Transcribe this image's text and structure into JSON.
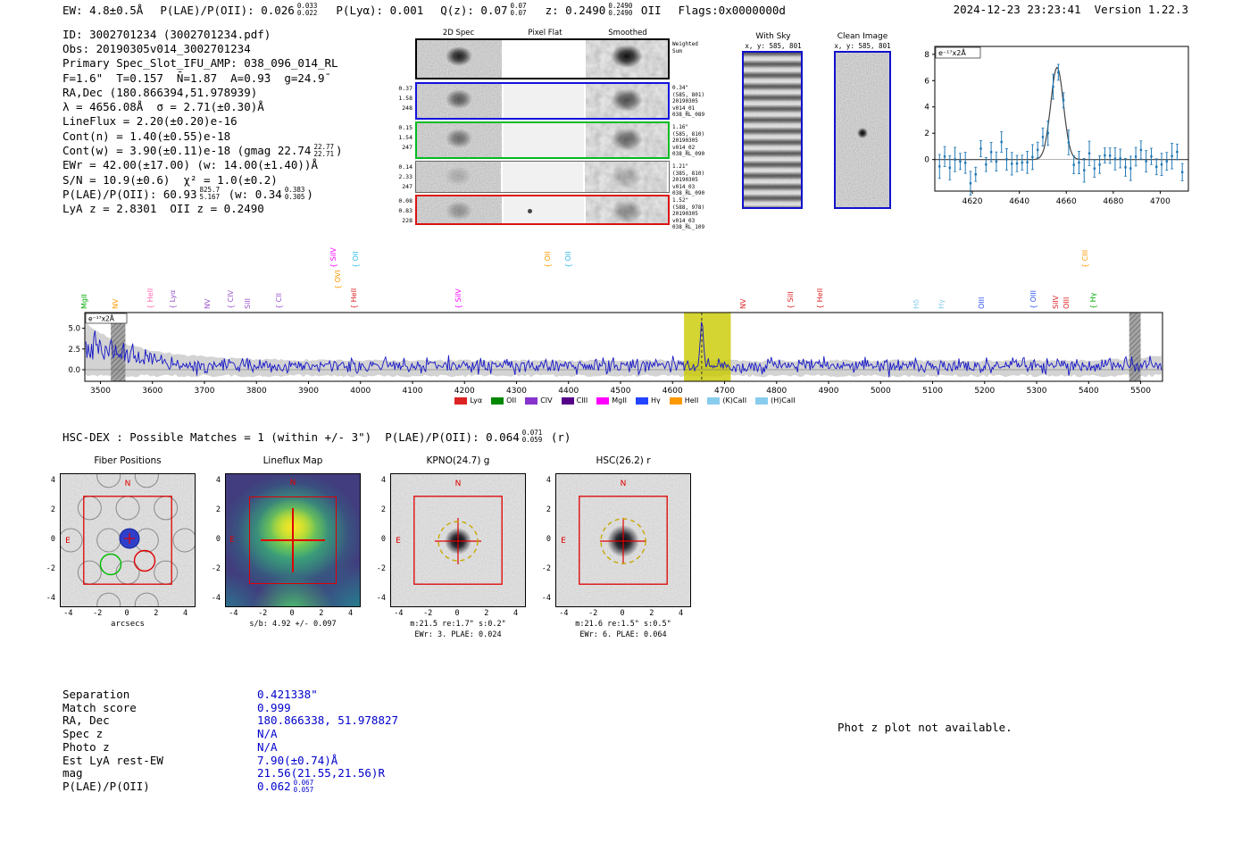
{
  "header": {
    "datetime": "2024-12-23 23:23:41",
    "version": "Version 1.22.3"
  },
  "header_groups": [
    {
      "segs": [
        {
          "t": "EW: 4.8±0.5Å"
        }
      ]
    },
    {
      "segs": [
        {
          "t": "P(LAE)/P(OII): 0.026"
        },
        {
          "sup": "0.033",
          "sub": "0.022"
        }
      ]
    },
    {
      "segs": [
        {
          "t": "P(Lyα): 0.001"
        }
      ]
    },
    {
      "segs": [
        {
          "t": "Q(z): 0.07"
        },
        {
          "sup": "0.07",
          "sub": "0.07"
        }
      ]
    },
    {
      "segs": [
        {
          "t": "z: 0.2490"
        },
        {
          "sup": "0.2490",
          "sub": "0.2490"
        },
        {
          "t": " OII"
        }
      ]
    },
    {
      "segs": [
        {
          "t": "Flags:0x0000000d"
        }
      ]
    }
  ],
  "info_lines": [
    {
      "segs": [
        {
          "t": "ID: 3002701234 (3002701234.pdf)"
        }
      ]
    },
    {
      "segs": [
        {
          "t": "Obs: 20190305v014_3002701234"
        }
      ]
    },
    {
      "segs": [
        {
          "t": "Primary Spec_Slot_IFU_AMP: 038_096_014_RL"
        }
      ]
    },
    {
      "segs": [
        {
          "t": "F=1.6\"  T=0.157  N̄=1.87  A=0.9̄3  g=24.9̄"
        }
      ]
    },
    {
      "segs": [
        {
          "t": "RA,Dec (180.866394,51.978939)"
        }
      ]
    },
    {
      "segs": [
        {
          "t": "λ = 4656.08Å  σ = 2.71(±0.30)Å"
        }
      ]
    },
    {
      "segs": [
        {
          "t": "LineFlux = 2.20(±0.20)e-16"
        }
      ]
    },
    {
      "segs": [
        {
          "t": "Cont(n) = 1.40(±0.55)e-18"
        }
      ]
    },
    {
      "segs": [
        {
          "t": "Cont(w) = 3.90(±0.11)e-18 (gmag 22.74"
        },
        {
          "sup": "22.77",
          "sub": "22.71"
        },
        {
          "t": ")"
        }
      ]
    },
    {
      "segs": [
        {
          "t": "EWr = 42.00(±17.00) (w: 14.00(±1.40))Å"
        }
      ]
    },
    {
      "segs": [
        {
          "t": "S/N = 10.9(±0.6)  χ² = 1.0(±0.2)"
        }
      ]
    },
    {
      "segs": [
        {
          "t": "P(LAE)/P(OII): 60.93"
        },
        {
          "sup": "825.7",
          "sub": "5.167"
        },
        {
          "t": " (w: 0.34"
        },
        {
          "sup": "0.383",
          "sub": "0.305"
        },
        {
          "t": ")"
        }
      ]
    },
    {
      "segs": [
        {
          "t": "LyA z = 2.8301  OII z = 0.2490"
        }
      ]
    }
  ],
  "spec2d": {
    "col_headers": [
      "2D Spec",
      "Pixel Flat",
      "Smoothed"
    ],
    "weighted_sum_l1": "Weighted",
    "weighted_sum_l2": "Sum",
    "rows": [
      {
        "border": "#000000",
        "left": [],
        "right": []
      },
      {
        "border": "#1111dd",
        "left": [
          "0.37",
          "1.58",
          "248"
        ],
        "right": [
          "0.34\"",
          "(585, 801)",
          "20190305",
          "v014_01",
          "038_RL_089"
        ]
      },
      {
        "border": "#00bb22",
        "left": [
          "0.15",
          "1.54",
          "247"
        ],
        "right": [
          "1.16\"",
          "(585, 810)",
          "20190305",
          "v014_02",
          "038_RL_090"
        ]
      },
      {
        "border": "#666666",
        "left": [
          "0.14",
          "2.33",
          "247"
        ],
        "right": [
          "1.21\"",
          "(385, 810)",
          "20190305",
          "v014_03",
          "038_RL_090"
        ]
      },
      {
        "border": "#dd1111",
        "left": [
          "0.08",
          "0.83",
          "228"
        ],
        "right": [
          "1.52\"",
          "(588, 978)",
          "20190305",
          "v014_03",
          "038_RL_109"
        ]
      }
    ]
  },
  "cutout2d": {
    "with_sky_title": "With Sky",
    "with_sky_xy": "x, y: 585, 801",
    "clean_title": "Clean Image",
    "clean_xy": "x, y: 585, 801"
  },
  "hsc_line": {
    "segs": [
      {
        "t": "HSC-DEX : Possible Matches = 1 (within +/- 3\")  P(LAE)/P(OII): 0.064"
      },
      {
        "sup": "0.071",
        "sub": "0.059"
      },
      {
        "t": " (r)"
      }
    ]
  },
  "cutouts": {
    "axis_ticks": [
      "-4",
      "-2",
      "0",
      "2",
      "4"
    ],
    "xlabel": "arcsecs",
    "compass_n": "N",
    "compass_e": "E",
    "panels": [
      {
        "title": "Fiber Positions",
        "type": "fiber",
        "captions": []
      },
      {
        "title": "Lineflux Map",
        "type": "lineflux",
        "captions": [
          "s/b: 4.92 +/- 0.097"
        ]
      },
      {
        "title": "KPNO(24.7) g",
        "type": "image",
        "captions": [
          "m:21.5 re:1.7\" s:0.2\"",
          "EWr: 3. PLAE: 0.024"
        ]
      },
      {
        "title": "HSC(26.2) r",
        "type": "image",
        "captions": [
          "m:21.6 re:1.5\" s:0.5\"",
          "EWr: 6. PLAE: 0.064"
        ]
      }
    ]
  },
  "match_table": {
    "value_color": "#0000cc",
    "rows": [
      {
        "label": "Separation",
        "value": "0.421338\""
      },
      {
        "label": "Match score",
        "value": "0.999"
      },
      {
        "label": "RA, Dec",
        "value": "180.866338, 51.978827"
      },
      {
        "label": "Spec z",
        "value": "N/A"
      },
      {
        "label": "Photo z",
        "value": "N/A"
      },
      {
        "label": "Est LyA rest-EW",
        "value": "7.90(±0.74)Å"
      },
      {
        "label": "mag",
        "value": "21.56(21.55,21.56)R"
      },
      {
        "label": "P(LAE)/P(OII)",
        "value": "0.062",
        "sup": "0.067",
        "sub": "0.057"
      }
    ]
  },
  "photz_note": "Phot z plot not available.",
  "chart_data": [
    {
      "id": "emission-line-zoom",
      "type": "line",
      "units_label": "e⁻¹⁷x2Å",
      "xlim": [
        4604,
        4712
      ],
      "ylim": [
        -2.4,
        8.6
      ],
      "x_ticks": [
        4620,
        4640,
        4660,
        4680,
        4700
      ],
      "y_ticks": [
        0,
        2,
        4,
        6,
        8
      ],
      "gaussian_fit": {
        "center": 4656.08,
        "sigma": 2.71,
        "amplitude": 7.0,
        "baseline": 0.0
      },
      "point_step": 2.2,
      "noise_sigma": 0.55,
      "errorbar": 0.75,
      "point_color": "#1f77b4",
      "fit_color": "#444444",
      "seed": 42
    },
    {
      "id": "full-spectrum",
      "type": "line",
      "units_label": "e⁻¹⁷x2Å",
      "xlim": [
        3470,
        5542
      ],
      "ylim": [
        -1.4,
        6.9
      ],
      "x_ticks": [
        3500,
        3600,
        3700,
        3800,
        3900,
        4000,
        4100,
        4200,
        4300,
        4400,
        4500,
        4600,
        4700,
        4800,
        4900,
        5000,
        5100,
        5200,
        5300,
        5400,
        5500
      ],
      "y_ticks": [
        0.0,
        2.5,
        5.0
      ],
      "line_color": "#1616c8",
      "emission_peak": {
        "center": 4656.08,
        "sigma": 2.71,
        "amplitude": 5.0
      },
      "highlight_band": {
        "x0": 4622,
        "x1": 4712,
        "color": "#c9c900",
        "opacity": 0.8
      },
      "marker_line": {
        "x": 4656.08,
        "color": "#333333"
      },
      "edge_bands": [
        {
          "x0": 3520,
          "x1": 3548
        },
        {
          "x0": 5478,
          "x1": 5500
        }
      ],
      "gray_band_color": "#c4c4c4",
      "seed": 7,
      "legend": [
        {
          "label": "Lyα",
          "color": "#dd2222"
        },
        {
          "label": "OII",
          "color": "#008800"
        },
        {
          "label": "CIV",
          "color": "#8833cc"
        },
        {
          "label": "CIII",
          "color": "#550088"
        },
        {
          "label": "MgII",
          "color": "#ff00ff"
        },
        {
          "label": "Hγ",
          "color": "#2244ff"
        },
        {
          "label": "HeII",
          "color": "#ff9900"
        },
        {
          "label": "(K)CaII",
          "color": "#88ccee"
        },
        {
          "label": "(H)CaII",
          "color": "#88ccee"
        }
      ],
      "line_labels": [
        {
          "label": "MgII",
          "wl": 3480,
          "color": "#00aa00",
          "tier": 0,
          "brace": false
        },
        {
          "label": "NV",
          "wl": 3540,
          "color": "#ff9900",
          "tier": 0,
          "brace": false
        },
        {
          "label": "HeII",
          "wl": 3607,
          "color": "#ff69b4",
          "tier": 0,
          "brace": true
        },
        {
          "label": "Lyα",
          "wl": 3650,
          "color": "#9955cc",
          "tier": 0,
          "brace": true
        },
        {
          "label": "NV",
          "wl": 3718,
          "color": "#9955cc",
          "tier": 0,
          "brace": false
        },
        {
          "label": "CIV",
          "wl": 3762,
          "color": "#9955cc",
          "tier": 0,
          "brace": true
        },
        {
          "label": "SiII",
          "wl": 3795,
          "color": "#9955cc",
          "tier": 0,
          "brace": false
        },
        {
          "label": "CII",
          "wl": 3855,
          "color": "#9955cc",
          "tier": 0,
          "brace": true
        },
        {
          "label": "SiIV",
          "wl": 3960,
          "color": "#ff00ff",
          "tier": 2,
          "brace": true
        },
        {
          "label": "OVI",
          "wl": 3968,
          "color": "#ff9900",
          "tier": 1,
          "brace": true
        },
        {
          "label": "HeII",
          "wl": 3998,
          "color": "#dd2222",
          "tier": 0,
          "brace": true
        },
        {
          "label": "OII",
          "wl": 4002,
          "color": "#33bbee",
          "tier": 2,
          "brace": true
        },
        {
          "label": "SiIV",
          "wl": 4200,
          "color": "#ff00ff",
          "tier": 0,
          "brace": true
        },
        {
          "label": "OII",
          "wl": 4372,
          "color": "#ff9900",
          "tier": 2,
          "brace": true
        },
        {
          "label": "OII",
          "wl": 4410,
          "color": "#33bbee",
          "tier": 2,
          "brace": true
        },
        {
          "label": "NV",
          "wl": 4748,
          "color": "#dd2222",
          "tier": 0,
          "brace": false
        },
        {
          "label": "SiII",
          "wl": 4838,
          "color": "#dd2222",
          "tier": 0,
          "brace": true
        },
        {
          "label": "HeII",
          "wl": 4895,
          "color": "#dd2222",
          "tier": 0,
          "brace": true
        },
        {
          "label": "Hδ",
          "wl": 5080,
          "color": "#88ccee",
          "tier": 0,
          "brace": false
        },
        {
          "label": "Hγ",
          "wl": 5128,
          "color": "#88ccee",
          "tier": 0,
          "brace": false
        },
        {
          "label": "OIII",
          "wl": 5205,
          "color": "#3355ee",
          "tier": 0,
          "brace": false
        },
        {
          "label": "OIII",
          "wl": 5305,
          "color": "#3355ee",
          "tier": 0,
          "brace": true
        },
        {
          "label": "SiIV",
          "wl": 5348,
          "color": "#dd2222",
          "tier": 0,
          "brace": false
        },
        {
          "label": "OIII",
          "wl": 5368,
          "color": "#dd2222",
          "tier": 0,
          "brace": false
        },
        {
          "label": "CIII",
          "wl": 5405,
          "color": "#ff9900",
          "tier": 2,
          "brace": true
        },
        {
          "label": "Hγ",
          "wl": 5420,
          "color": "#00aa00",
          "tier": 0,
          "brace": true
        }
      ]
    }
  ]
}
